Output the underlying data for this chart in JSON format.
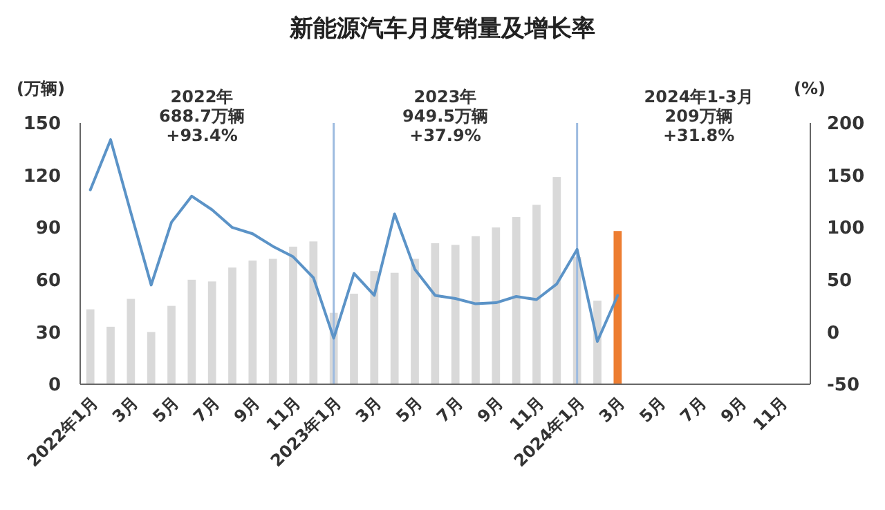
{
  "chart_data": {
    "type": "bar",
    "title": "新能源汽车月度销量及增长率",
    "ylabel": "(万辆)",
    "y2label": "(%)",
    "categories": [
      "2022年1月",
      null,
      "3月",
      null,
      "5月",
      null,
      "7月",
      null,
      "9月",
      null,
      "11月",
      null,
      "2023年1月",
      null,
      "3月",
      null,
      "5月",
      null,
      "7月",
      null,
      "9月",
      null,
      "11月",
      null,
      "2024年1月",
      null,
      "3月",
      null,
      "5月",
      null,
      "7月",
      null,
      "9月",
      null,
      "11月",
      null
    ],
    "series": [
      {
        "colors": [
          "#d9d9d9",
          "#d9d9d9",
          "#d9d9d9",
          "#d9d9d9",
          "#d9d9d9",
          "#d9d9d9",
          "#d9d9d9",
          "#d9d9d9",
          "#d9d9d9",
          "#d9d9d9",
          "#d9d9d9",
          "#d9d9d9",
          "#d9d9d9",
          "#d9d9d9",
          "#d9d9d9",
          "#d9d9d9",
          "#d9d9d9",
          "#d9d9d9",
          "#d9d9d9",
          "#d9d9d9",
          "#d9d9d9",
          "#d9d9d9",
          "#d9d9d9",
          "#d9d9d9",
          "#d9d9d9",
          "#d9d9d9",
          "#ed7d31",
          null,
          null,
          null,
          null,
          null,
          null,
          null,
          null,
          null
        ],
        "values": [
          43,
          33,
          49,
          30,
          45,
          60,
          59,
          67,
          71,
          72,
          79,
          82,
          41,
          52,
          65,
          64,
          72,
          81,
          80,
          85,
          90,
          96,
          103,
          119,
          73,
          48,
          88,
          null,
          null,
          null,
          null,
          null,
          null,
          null,
          null,
          null
        ]
      },
      {
        "type": "line",
        "axis": "y2",
        "color": "#5b93c7",
        "marker": "none",
        "line_style": "solid",
        "values": [
          136,
          184,
          114,
          45,
          105,
          130,
          117,
          100,
          94,
          82,
          72,
          52,
          -6,
          56,
          35,
          113,
          60,
          35,
          32,
          27,
          28,
          34,
          31,
          46,
          79,
          -9,
          35,
          null,
          null,
          null,
          null,
          null,
          null,
          null,
          null,
          null
        ]
      }
    ],
    "ylim": [
      0,
      150
    ],
    "yticks": [
      0,
      30,
      60,
      90,
      120,
      150
    ],
    "y2lim": [
      -50,
      200
    ],
    "y2ticks": [
      -50,
      0,
      50,
      100,
      150,
      200
    ],
    "grid": false,
    "ref_lines": [
      {
        "axis": "x",
        "value": "2023年1月",
        "color": "#9dbbe0"
      },
      {
        "axis": "x",
        "value": "2024年1月",
        "color": "#9dbbe0"
      }
    ],
    "annotations": [
      "2022年\n688.7万辆\n+93.4%",
      "2023年\n949.5万辆\n+37.9%",
      "2024年1-3月\n209万辆\n+31.8%"
    ]
  }
}
